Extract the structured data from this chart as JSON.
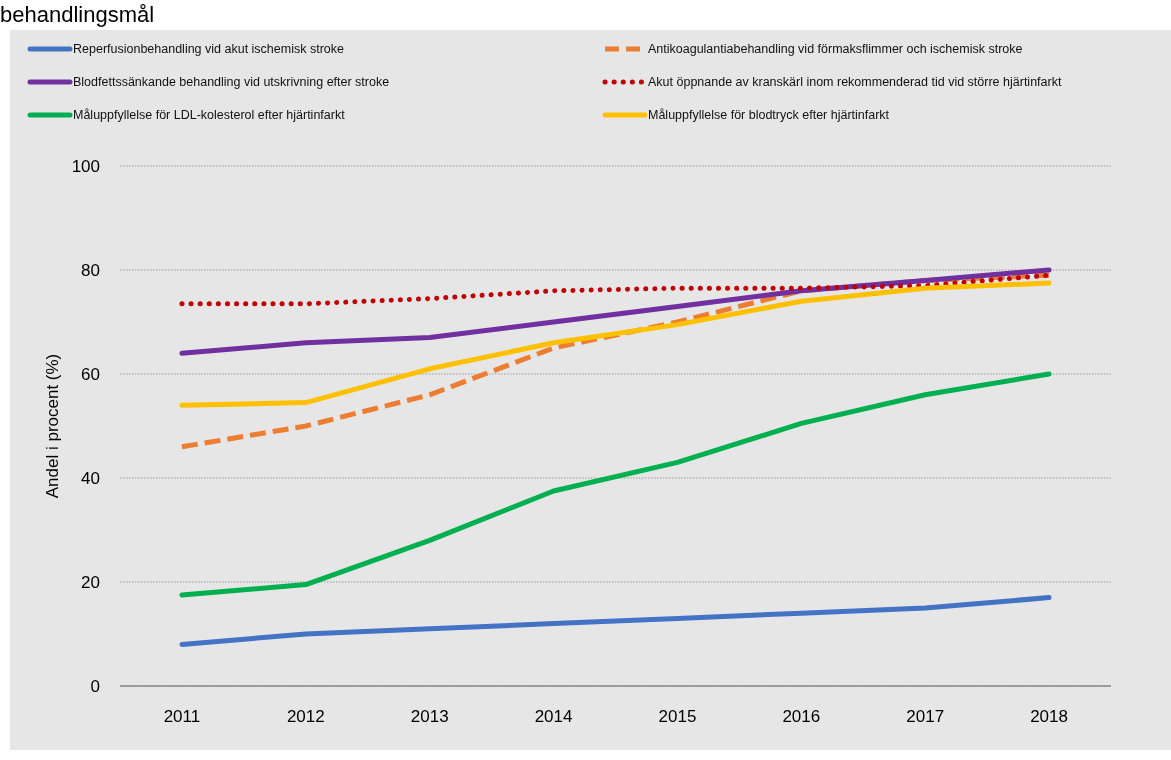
{
  "chart_data": {
    "type": "line",
    "title": "behandlingsmål",
    "ylabel": "Andel i procent (%)",
    "categories": [
      "2011",
      "2012",
      "2013",
      "2014",
      "2015",
      "2016",
      "2017",
      "2018"
    ],
    "ylim": [
      0,
      100
    ],
    "yticks": [
      0,
      20,
      40,
      60,
      80,
      100
    ],
    "grid": "y",
    "legend": "top",
    "series": [
      {
        "name": "Reperfusionbehandling vid akut ischemisk stroke",
        "color": "#4472c4",
        "line_style": "solid",
        "values": [
          8,
          10,
          11,
          12,
          13,
          14,
          15,
          17
        ]
      },
      {
        "name": "Antikoagulantiabehandling vid förmaksflimmer och ischemisk stroke",
        "color": "#ed7d31",
        "line_style": "dashed",
        "values": [
          46,
          50,
          56,
          65,
          70,
          76,
          78,
          79
        ]
      },
      {
        "name": "Blodfettssänkande behandling vid utskrivning efter stroke",
        "color": "#7030a0",
        "line_style": "solid",
        "values": [
          64,
          66,
          67,
          70,
          73,
          76,
          78,
          80
        ]
      },
      {
        "name": "Akut öppnande av kranskärl inom rekommenderad tid vid större hjärtinfarkt",
        "color": "#c00000",
        "line_style": "dotted",
        "values": [
          73.5,
          73.5,
          74.5,
          76,
          76.5,
          76.5,
          77,
          79
        ]
      },
      {
        "name": "Måluppfyllelse för LDL-kolesterol efter hjärtinfarkt",
        "color": "#00b050",
        "line_style": "solid",
        "values": [
          17.5,
          19.5,
          28,
          37.5,
          43,
          50.5,
          56,
          60
        ]
      },
      {
        "name": "Måluppfyllelse för blodtryck efter hjärtinfarkt",
        "color": "#ffc000",
        "line_style": "solid",
        "values": [
          54,
          54.5,
          61,
          66,
          69.5,
          74,
          76.5,
          77.5
        ]
      }
    ]
  }
}
